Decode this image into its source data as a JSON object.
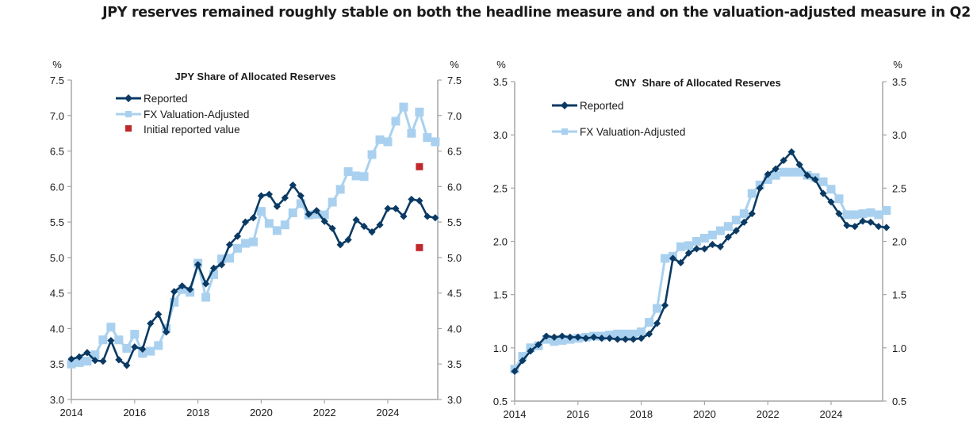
{
  "headline": "JPY reserves remained roughly stable on both the headline measure and on the valuation-adjusted measure in Q2",
  "colors": {
    "reported": "#0a3a63",
    "fx_adjusted": "#a9d1ef",
    "initial": "#c0282c",
    "axis": "#a6a6a6",
    "text": "#1a1a1a"
  },
  "chart_data": [
    {
      "type": "line",
      "title": "JPY Share of Allocated Reserves",
      "unit_left": "%",
      "unit_right": "%",
      "xlabel": "",
      "ylabel": "%",
      "ylim": [
        3.0,
        7.5
      ],
      "yticks": [
        "3.0",
        "3.5",
        "4.0",
        "4.5",
        "5.0",
        "5.5",
        "6.0",
        "6.5",
        "7.0",
        "7.5"
      ],
      "xlim": [
        2014,
        2025.6
      ],
      "xticks": [
        "2014",
        "2016",
        "2018",
        "2020",
        "2022",
        "2024"
      ],
      "grid": false,
      "legend_position": "top-left",
      "legend": [
        "Reported",
        "FX Valuation-Adjusted",
        "Initial reported value"
      ],
      "x_start": 2014.0,
      "x_step": 0.25,
      "series": [
        {
          "name": "Reported",
          "marker": "diamond",
          "values": [
            3.57,
            3.6,
            3.66,
            3.55,
            3.54,
            3.83,
            3.56,
            3.48,
            3.74,
            3.71,
            4.07,
            4.2,
            3.95,
            4.52,
            4.6,
            4.55,
            4.9,
            4.63,
            4.85,
            4.9,
            5.18,
            5.3,
            5.5,
            5.56,
            5.87,
            5.89,
            5.72,
            5.84,
            6.02,
            5.87,
            5.61,
            5.66,
            5.51,
            5.41,
            5.18,
            5.25,
            5.53,
            5.44,
            5.36,
            5.46,
            5.69,
            5.69,
            5.58,
            5.82,
            5.8,
            5.58,
            5.56
          ]
        },
        {
          "name": "FX Valuation-Adjusted",
          "marker": "square",
          "values": [
            3.5,
            3.52,
            3.54,
            3.63,
            3.84,
            4.02,
            3.84,
            3.72,
            3.92,
            3.65,
            3.68,
            3.76,
            4.0,
            4.37,
            4.55,
            4.51,
            4.92,
            4.44,
            4.76,
            4.98,
            4.99,
            5.13,
            5.2,
            5.22,
            5.65,
            5.48,
            5.38,
            5.46,
            5.63,
            5.76,
            5.6,
            5.61,
            5.6,
            5.78,
            5.96,
            6.21,
            6.15,
            6.14,
            6.45,
            6.66,
            6.63,
            6.92,
            7.12,
            6.75,
            7.05,
            6.69,
            6.63
          ]
        },
        {
          "name": "Initial reported value",
          "marker": "square",
          "points": [
            {
              "x": 2025.0,
              "y": 6.28
            },
            {
              "x": 2025.0,
              "y": 5.14
            }
          ]
        }
      ]
    },
    {
      "type": "line",
      "title": "CNY  Share of Allocated Reserves",
      "unit_left": "%",
      "unit_right": "%",
      "xlabel": "",
      "ylabel": "%",
      "ylim": [
        0.5,
        3.5
      ],
      "yticks": [
        "0.5",
        "1.0",
        "1.5",
        "2.0",
        "2.5",
        "3.0",
        "3.5"
      ],
      "xlim": [
        2014,
        2025.6
      ],
      "xticks": [
        "2014",
        "2016",
        "2018",
        "2020",
        "2022",
        "2024"
      ],
      "grid": false,
      "legend_position": "top-left",
      "legend": [
        "Reported",
        "FX Valuation-Adjusted"
      ],
      "x_start": 2014.0,
      "x_step": 0.25,
      "series": [
        {
          "name": "Reported",
          "marker": "diamond",
          "values": [
            0.78,
            0.88,
            0.97,
            1.03,
            1.11,
            1.1,
            1.11,
            1.1,
            1.1,
            1.09,
            1.1,
            1.09,
            1.09,
            1.08,
            1.08,
            1.08,
            1.09,
            1.13,
            1.23,
            1.4,
            1.84,
            1.8,
            1.89,
            1.93,
            1.93,
            1.97,
            1.95,
            2.04,
            2.1,
            2.18,
            2.26,
            2.5,
            2.63,
            2.68,
            2.76,
            2.84,
            2.72,
            2.62,
            2.58,
            2.45,
            2.37,
            2.26,
            2.15,
            2.14,
            2.19,
            2.18,
            2.14,
            2.13
          ]
        },
        {
          "name": "FX Valuation-Adjusted",
          "marker": "square",
          "values": [
            0.8,
            0.92,
            1.0,
            1.02,
            1.08,
            1.06,
            1.07,
            1.08,
            1.09,
            1.1,
            1.11,
            1.11,
            1.12,
            1.13,
            1.13,
            1.13,
            1.15,
            1.24,
            1.37,
            1.84,
            1.86,
            1.95,
            1.96,
            2.0,
            2.03,
            2.06,
            2.1,
            2.14,
            2.2,
            2.26,
            2.45,
            2.53,
            2.58,
            2.62,
            2.65,
            2.65,
            2.65,
            2.62,
            2.6,
            2.56,
            2.49,
            2.4,
            2.25,
            2.25,
            2.26,
            2.27,
            2.25,
            2.29
          ]
        }
      ]
    }
  ]
}
